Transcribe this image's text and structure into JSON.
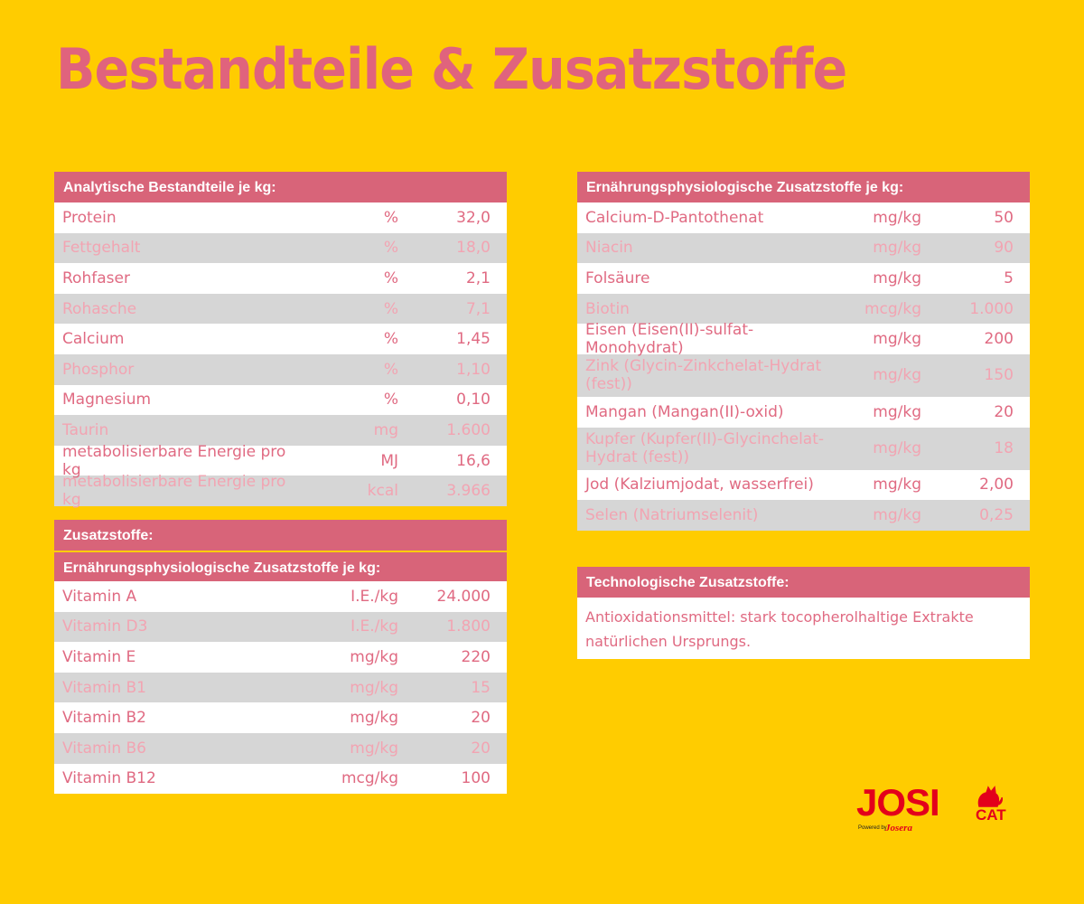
{
  "title": "Bestandteile & Zusatzstoffe",
  "analytic": {
    "header": "Analytische Bestandteile je kg:",
    "rows": [
      {
        "name": "Protein",
        "unit": "%",
        "value": "32,0"
      },
      {
        "name": "Fettgehalt",
        "unit": "%",
        "value": "18,0"
      },
      {
        "name": "Rohfaser",
        "unit": "%",
        "value": "2,1"
      },
      {
        "name": "Rohasche",
        "unit": "%",
        "value": "7,1"
      },
      {
        "name": "Calcium",
        "unit": "%",
        "value": "1,45"
      },
      {
        "name": "Phosphor",
        "unit": "%",
        "value": "1,10"
      },
      {
        "name": "Magnesium",
        "unit": "%",
        "value": "0,10"
      },
      {
        "name": "Taurin",
        "unit": "mg",
        "value": "1.600"
      },
      {
        "name": "metabolisierbare Energie pro kg",
        "unit": "MJ",
        "value": "16,6"
      },
      {
        "name": "metabolisierbare Energie pro kg",
        "unit": "kcal",
        "value": "3.966"
      }
    ]
  },
  "additives": {
    "header": "Zusatzstoffe:",
    "subheader": "Ernährungsphysiologische Zusatzstoffe je kg:",
    "rows": [
      {
        "name": "Vitamin A",
        "unit": "I.E./kg",
        "value": "24.000"
      },
      {
        "name": "Vitamin D3",
        "unit": "I.E./kg",
        "value": "1.800"
      },
      {
        "name": "Vitamin E",
        "unit": "mg/kg",
        "value": "220"
      },
      {
        "name": "Vitamin B1",
        "unit": "mg/kg",
        "value": "15"
      },
      {
        "name": "Vitamin B2",
        "unit": "mg/kg",
        "value": "20"
      },
      {
        "name": "Vitamin B6",
        "unit": "mg/kg",
        "value": "20"
      },
      {
        "name": "Vitamin B12",
        "unit": "mcg/kg",
        "value": "100"
      }
    ]
  },
  "nutritional": {
    "header": "Ernährungsphysiologische Zusatzstoffe je kg:",
    "rows": [
      {
        "name": "Calcium-D-Pantothenat",
        "unit": "mg/kg",
        "value": "50"
      },
      {
        "name": "Niacin",
        "unit": "mg/kg",
        "value": "90"
      },
      {
        "name": "Folsäure",
        "unit": "mg/kg",
        "value": "5"
      },
      {
        "name": "Biotin",
        "unit": "mcg/kg",
        "value": "1.000"
      },
      {
        "name": "Eisen (Eisen(II)-sulfat-Monohydrat)",
        "unit": "mg/kg",
        "value": "200"
      },
      {
        "name": "Zink (Glycin-Zinkchelat-Hydrat (fest))",
        "unit": "mg/kg",
        "value": "150"
      },
      {
        "name": "Mangan (Mangan(II)-oxid)",
        "unit": "mg/kg",
        "value": "20"
      },
      {
        "name": "Kupfer (Kupfer(II)-Glycinchelat-Hydrat (fest))",
        "unit": "mg/kg",
        "value": "18"
      },
      {
        "name": "Jod (Kalziumjodat, wasserfrei)",
        "unit": "mg/kg",
        "value": "2,00"
      },
      {
        "name": "Selen (Natriumselenit)",
        "unit": "mg/kg",
        "value": "0,25"
      }
    ]
  },
  "technological": {
    "header": "Technologische Zusatzstoffe:",
    "text": "Antioxidationsmittel: stark tocopherolhaltige Extrakte natürlichen Ursprungs."
  },
  "logo": {
    "main": "JOSI",
    "cat": "CAT",
    "powered": "Powered by",
    "brand": "Josera",
    "icon": "cat-icon",
    "color": "#e3001b"
  },
  "colors": {
    "background": "#ffcc00",
    "header": "#d86479",
    "text": "#e06a82"
  }
}
